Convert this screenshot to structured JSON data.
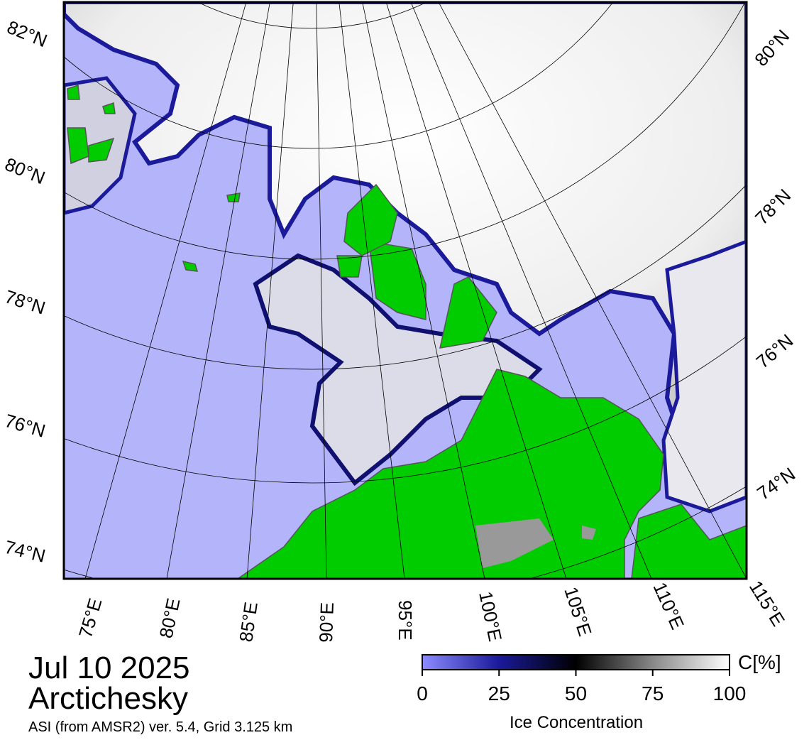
{
  "map": {
    "lat_labels_left": [
      "82°N",
      "80°N",
      "78°N",
      "76°N",
      "74°N"
    ],
    "lat_labels_right": [
      "80°N",
      "78°N",
      "76°N",
      "74°N"
    ],
    "lon_labels": [
      "75°E",
      "80°E",
      "85°E",
      "90°E",
      "95°E",
      "100°E",
      "105°E",
      "110°E",
      "115°E"
    ]
  },
  "caption": {
    "date": "Jul 10 2025",
    "region": "Arctichesky",
    "source": "ASI (from AMSR2) ver. 5.4,  Grid 3.125 km"
  },
  "colorbar": {
    "unit": "C[%]",
    "label": "Ice Concentration",
    "range": [
      0,
      100
    ],
    "ticks": [
      0,
      25,
      50,
      75,
      100
    ]
  }
}
